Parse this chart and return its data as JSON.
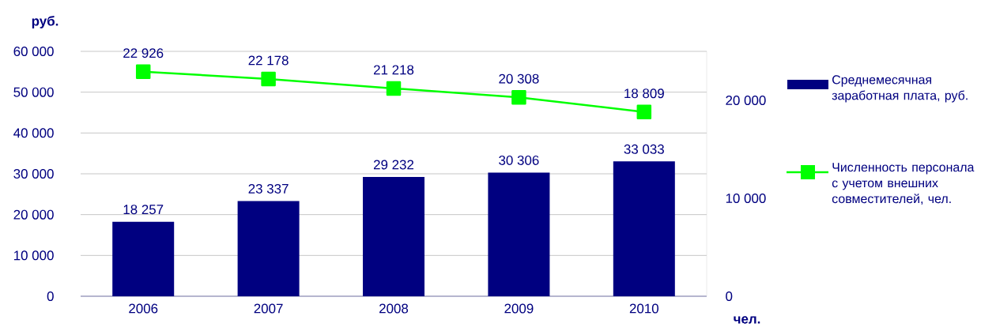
{
  "chart_data": {
    "type": "bar",
    "categories": [
      "2006",
      "2007",
      "2008",
      "2009",
      "2010"
    ],
    "ylabel": "руб.",
    "y2label": "чел.",
    "ylim": [
      0,
      60000
    ],
    "yticks": [
      0,
      {
        "value": 10000,
        "label": "10 000"
      },
      {
        "value": 20000,
        "label": "20 000"
      },
      {
        "value": 30000,
        "label": "30 000"
      },
      {
        "value": 40000,
        "label": "40 000"
      },
      {
        "value": 50000,
        "label": "50 000"
      },
      {
        "value": 60000,
        "label": "60 000"
      }
    ],
    "y2lim": [
      0,
      25000
    ],
    "y2ticks": [
      0,
      {
        "value": 10000,
        "label": "10 000"
      },
      {
        "value": 20000,
        "label": "20 000"
      }
    ],
    "grid": "y",
    "legend": "right",
    "series": [
      {
        "name": "Среднемесячная заработная плата, руб.",
        "color": "#000080",
        "values": [
          18257,
          23337,
          29232,
          30306,
          33033
        ],
        "value_labels": [
          "18 257",
          "23 337",
          "29 232",
          "30 306",
          "33 033"
        ]
      },
      {
        "name": "Численность персонала с учетом внешних совместителей, чел.",
        "type": "line",
        "axis": "y2",
        "marker": "square",
        "color": "#00ff00",
        "values": [
          22926,
          22178,
          21218,
          20308,
          18809
        ],
        "value_labels": [
          "22 926",
          "22 178",
          "21 218",
          "20 308",
          "18 809"
        ]
      }
    ]
  }
}
